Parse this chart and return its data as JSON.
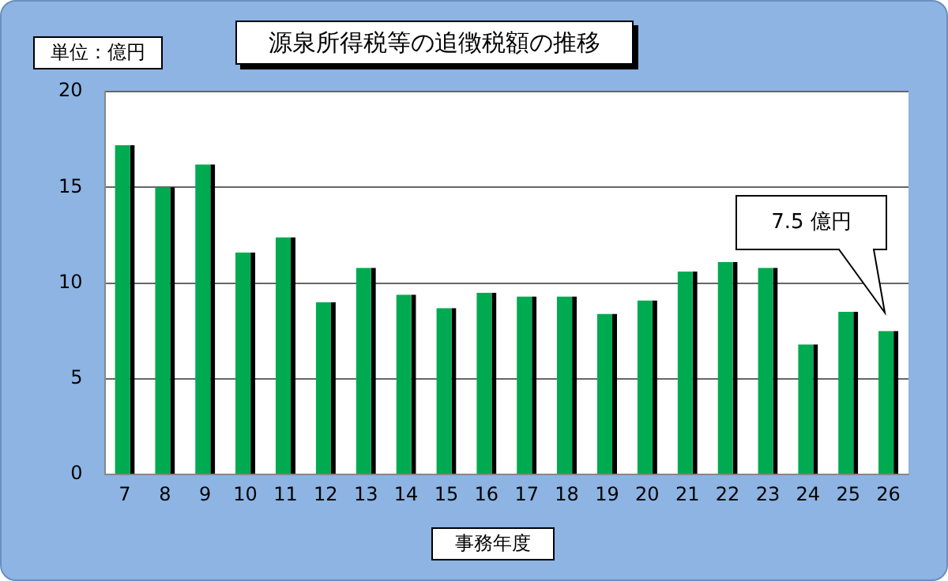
{
  "chart_data": {
    "type": "bar",
    "title": "源泉所得税等の追徴税額の推移",
    "ylabel": "単位：億円",
    "xlabel": "事務年度",
    "categories": [
      "7",
      "8",
      "9",
      "10",
      "11",
      "12",
      "13",
      "14",
      "15",
      "16",
      "17",
      "18",
      "19",
      "20",
      "21",
      "22",
      "23",
      "24",
      "25",
      "26"
    ],
    "values": [
      17.2,
      15.0,
      16.2,
      11.6,
      12.4,
      9.0,
      10.8,
      9.4,
      8.7,
      9.5,
      9.3,
      9.3,
      8.4,
      9.1,
      10.6,
      11.1,
      10.8,
      6.8,
      8.5,
      7.5
    ],
    "color": "#00aa50",
    "ylim": [
      0,
      20
    ],
    "yticks": [
      0,
      5,
      10,
      15,
      20
    ],
    "grid": "y",
    "legend": false,
    "annotations": [
      "7.5 億円"
    ]
  }
}
